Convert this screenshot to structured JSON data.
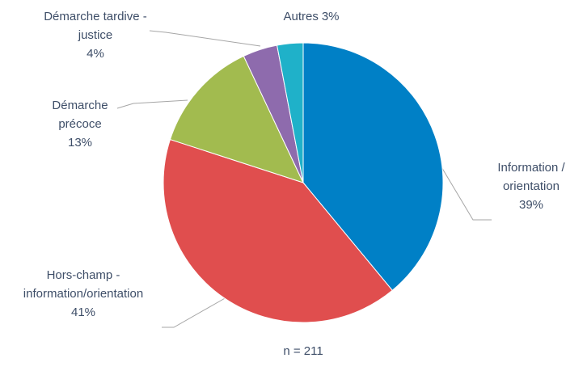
{
  "chart_data": {
    "type": "pie",
    "categories": [
      "Information / orientation",
      "Hors-champ - information/orientation",
      "Démarche précoce",
      "Démarche tardive - justice",
      "Autres"
    ],
    "values": [
      39,
      41,
      13,
      4,
      3
    ],
    "value_labels": [
      "39%",
      "41%",
      "13%",
      "4%",
      "3%"
    ],
    "colors": [
      "#0080c6",
      "#e04e4e",
      "#a2bb4f",
      "#8e6bad",
      "#1fb1c9"
    ],
    "annotation": "n = 211"
  }
}
